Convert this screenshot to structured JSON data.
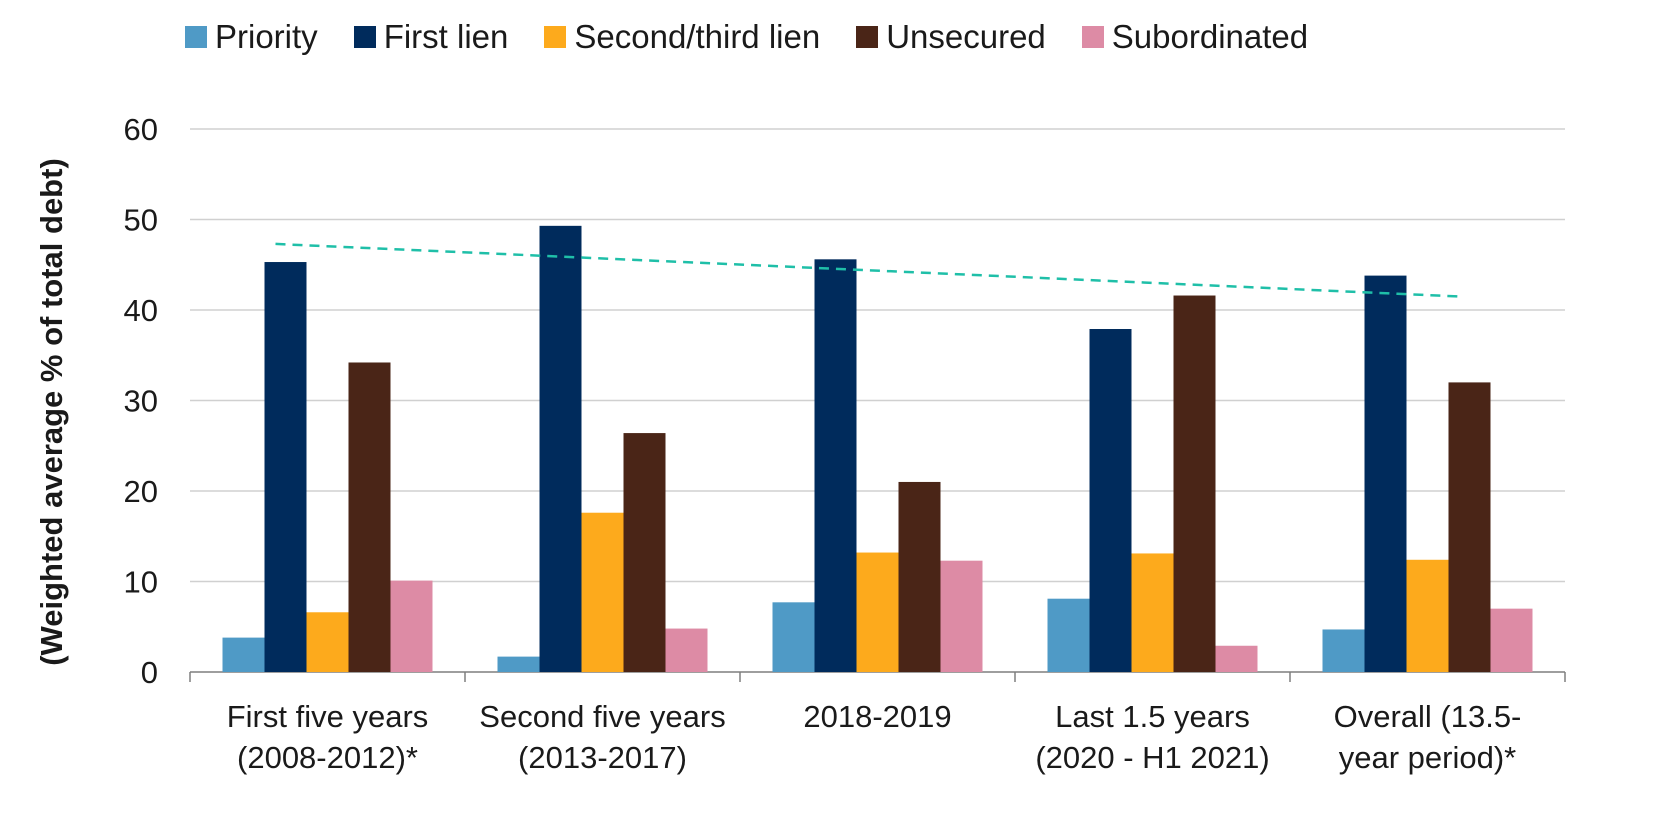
{
  "chart_data": {
    "type": "bar",
    "categories": [
      [
        "First five years",
        "(2008-2012)*"
      ],
      [
        "Second five years",
        "(2013-2017)"
      ],
      [
        "2018-2019"
      ],
      [
        "Last 1.5 years",
        "(2020 - H1 2021)"
      ],
      [
        "Overall (13.5-",
        "year period)*"
      ]
    ],
    "series": [
      {
        "name": "Priority",
        "color": "#4f9ac6",
        "values": [
          3.8,
          1.7,
          7.7,
          8.1,
          4.7
        ]
      },
      {
        "name": "First lien",
        "color": "#002b5c",
        "values": [
          45.3,
          49.3,
          45.6,
          37.9,
          43.8
        ]
      },
      {
        "name": "Second/third lien",
        "color": "#fdaa1c",
        "values": [
          6.6,
          17.6,
          13.2,
          13.1,
          12.4
        ]
      },
      {
        "name": "Unsecured",
        "color": "#4a2517",
        "values": [
          34.2,
          26.4,
          21.0,
          41.6,
          32.0
        ]
      },
      {
        "name": "Subordinated",
        "color": "#dd8ba5",
        "values": [
          10.1,
          4.8,
          12.3,
          2.9,
          7.0
        ]
      }
    ],
    "trendline": {
      "color": "#1fbfa8",
      "style": "dashed",
      "start_value": 47.3,
      "end_value": 41.5
    },
    "ylabel": "(Weighted average % of total debt)",
    "xlabel": "",
    "ylim": [
      0,
      60
    ],
    "yticks": [
      0,
      10,
      20,
      30,
      40,
      50,
      60
    ],
    "grid": true,
    "legend_position": "top"
  }
}
